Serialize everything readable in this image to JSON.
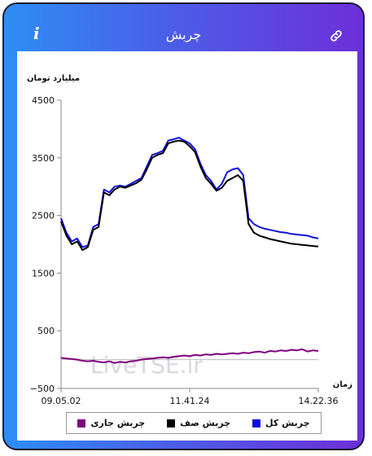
{
  "header": {
    "title": "چربش",
    "info_glyph": "i"
  },
  "icons": {
    "info": "info-icon",
    "link": "link-icon"
  },
  "watermark": "LiveTSE.ir",
  "chart_data": {
    "type": "line",
    "ylabel": "میلیارد تومان",
    "xlabel": "زمان",
    "ylim": [
      -500,
      4500
    ],
    "yticks": [
      -500,
      500,
      1500,
      2500,
      3500,
      4500
    ],
    "xticks": [
      "09.05.02",
      "11.41.24",
      "14.22.36"
    ],
    "grid": false,
    "legend_position": "bottom",
    "series": [
      {
        "name": "چربش کل",
        "color": "#1010d8",
        "values": [
          2450,
          2200,
          2050,
          2100,
          1950,
          1980,
          2300,
          2350,
          2950,
          2900,
          3000,
          3020,
          3000,
          3050,
          3100,
          3150,
          3350,
          3550,
          3580,
          3620,
          3800,
          3820,
          3850,
          3800,
          3750,
          3650,
          3400,
          3200,
          3100,
          2950,
          3050,
          3250,
          3300,
          3320,
          3200,
          2450,
          2350,
          2300,
          2270,
          2250,
          2230,
          2210,
          2200,
          2180,
          2170,
          2160,
          2150,
          2120,
          2100
        ]
      },
      {
        "name": "چربش صف",
        "color": "#000000",
        "values": [
          2400,
          2150,
          2000,
          2050,
          1900,
          1950,
          2250,
          2300,
          2900,
          2850,
          2950,
          3000,
          2980,
          3020,
          3060,
          3120,
          3300,
          3500,
          3550,
          3580,
          3750,
          3780,
          3800,
          3780,
          3700,
          3600,
          3350,
          3150,
          3050,
          2930,
          2980,
          3100,
          3150,
          3200,
          3100,
          2350,
          2200,
          2150,
          2120,
          2090,
          2070,
          2050,
          2030,
          2010,
          2000,
          1990,
          1980,
          1970,
          1960
        ]
      },
      {
        "name": "چربش جاری",
        "color": "#800080",
        "values": [
          30,
          20,
          10,
          0,
          -20,
          -30,
          -20,
          -40,
          -50,
          -30,
          -60,
          -40,
          -50,
          -30,
          -20,
          0,
          10,
          20,
          30,
          40,
          30,
          50,
          60,
          70,
          60,
          80,
          70,
          90,
          80,
          100,
          90,
          100,
          110,
          100,
          120,
          110,
          130,
          140,
          120,
          150,
          140,
          160,
          150,
          170,
          160,
          180,
          140,
          160,
          150
        ]
      }
    ]
  }
}
